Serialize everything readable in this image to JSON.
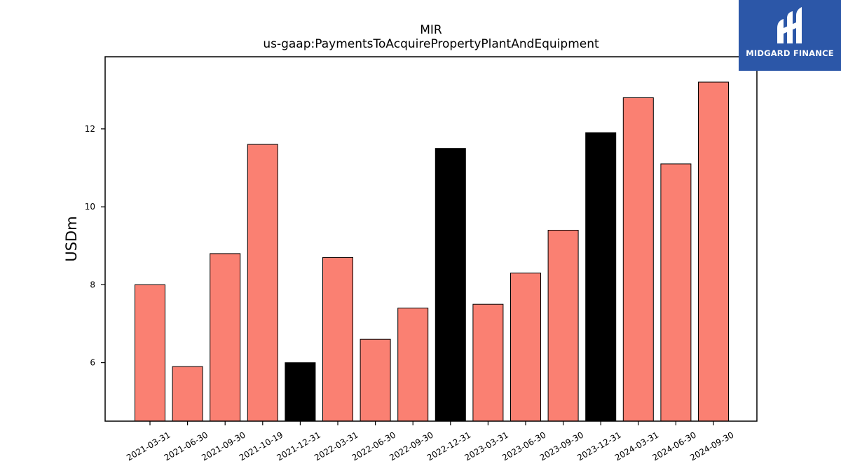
{
  "chart_data": {
    "type": "bar",
    "title": "MIR",
    "subtitle": "us-gaap:PaymentsToAcquirePropertyPlantAndEquipment",
    "xlabel": "",
    "ylabel": "USDm",
    "ylim": [
      4.5,
      13.85
    ],
    "yticks": [
      6,
      8,
      10,
      12
    ],
    "grid": false,
    "categories": [
      "2021-03-31",
      "2021-06-30",
      "2021-09-30",
      "2021-10-19",
      "2021-12-31",
      "2022-03-31",
      "2022-06-30",
      "2022-09-30",
      "2022-12-31",
      "2023-03-31",
      "2023-06-30",
      "2023-09-30",
      "2023-12-31",
      "2024-03-31",
      "2024-06-30",
      "2024-09-30"
    ],
    "values": [
      8.0,
      5.9,
      8.8,
      11.6,
      6.0,
      8.7,
      6.6,
      7.4,
      11.5,
      7.5,
      8.3,
      9.4,
      11.9,
      12.8,
      11.1,
      13.2
    ],
    "colors": [
      "#fa8072",
      "#fa8072",
      "#fa8072",
      "#fa8072",
      "#000000",
      "#fa8072",
      "#fa8072",
      "#fa8072",
      "#000000",
      "#fa8072",
      "#fa8072",
      "#fa8072",
      "#000000",
      "#fa8072",
      "#fa8072",
      "#fa8072"
    ]
  },
  "logo": {
    "text": "MIDGARD FINANCE",
    "background": "#2c57a8"
  }
}
